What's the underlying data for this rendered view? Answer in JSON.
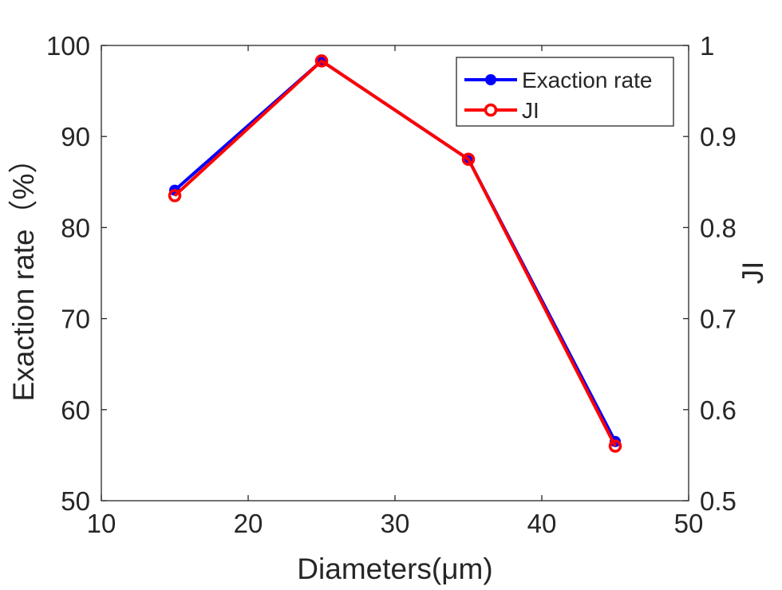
{
  "chart_data": {
    "type": "line",
    "xlabel": "Diameters(μm)",
    "ylabel_left": "Exaction rate（%）",
    "ylabel_right": "JI",
    "xlim": [
      10,
      50
    ],
    "ylim_left": [
      50,
      100
    ],
    "ylim_right": [
      0.5,
      1
    ],
    "x_ticks": [
      10,
      20,
      30,
      40,
      50
    ],
    "y_ticks_left": [
      50,
      60,
      70,
      80,
      90,
      100
    ],
    "y_ticks_right": [
      "0.5",
      "0.6",
      "0.7",
      "0.8",
      "0.9",
      "1"
    ],
    "grid": false,
    "legend_position": "top-right",
    "series": [
      {
        "name": "Exaction rate",
        "axis": "left",
        "color": "#0000ff",
        "marker": "filled-circle",
        "x": [
          15,
          25,
          35,
          45
        ],
        "y": [
          84.1,
          98.3,
          87.5,
          56.5
        ]
      },
      {
        "name": "JI",
        "axis": "right",
        "color": "#ff0000",
        "marker": "open-circle",
        "x": [
          15,
          25,
          35,
          45
        ],
        "y": [
          0.835,
          0.983,
          0.875,
          0.56
        ]
      }
    ]
  }
}
